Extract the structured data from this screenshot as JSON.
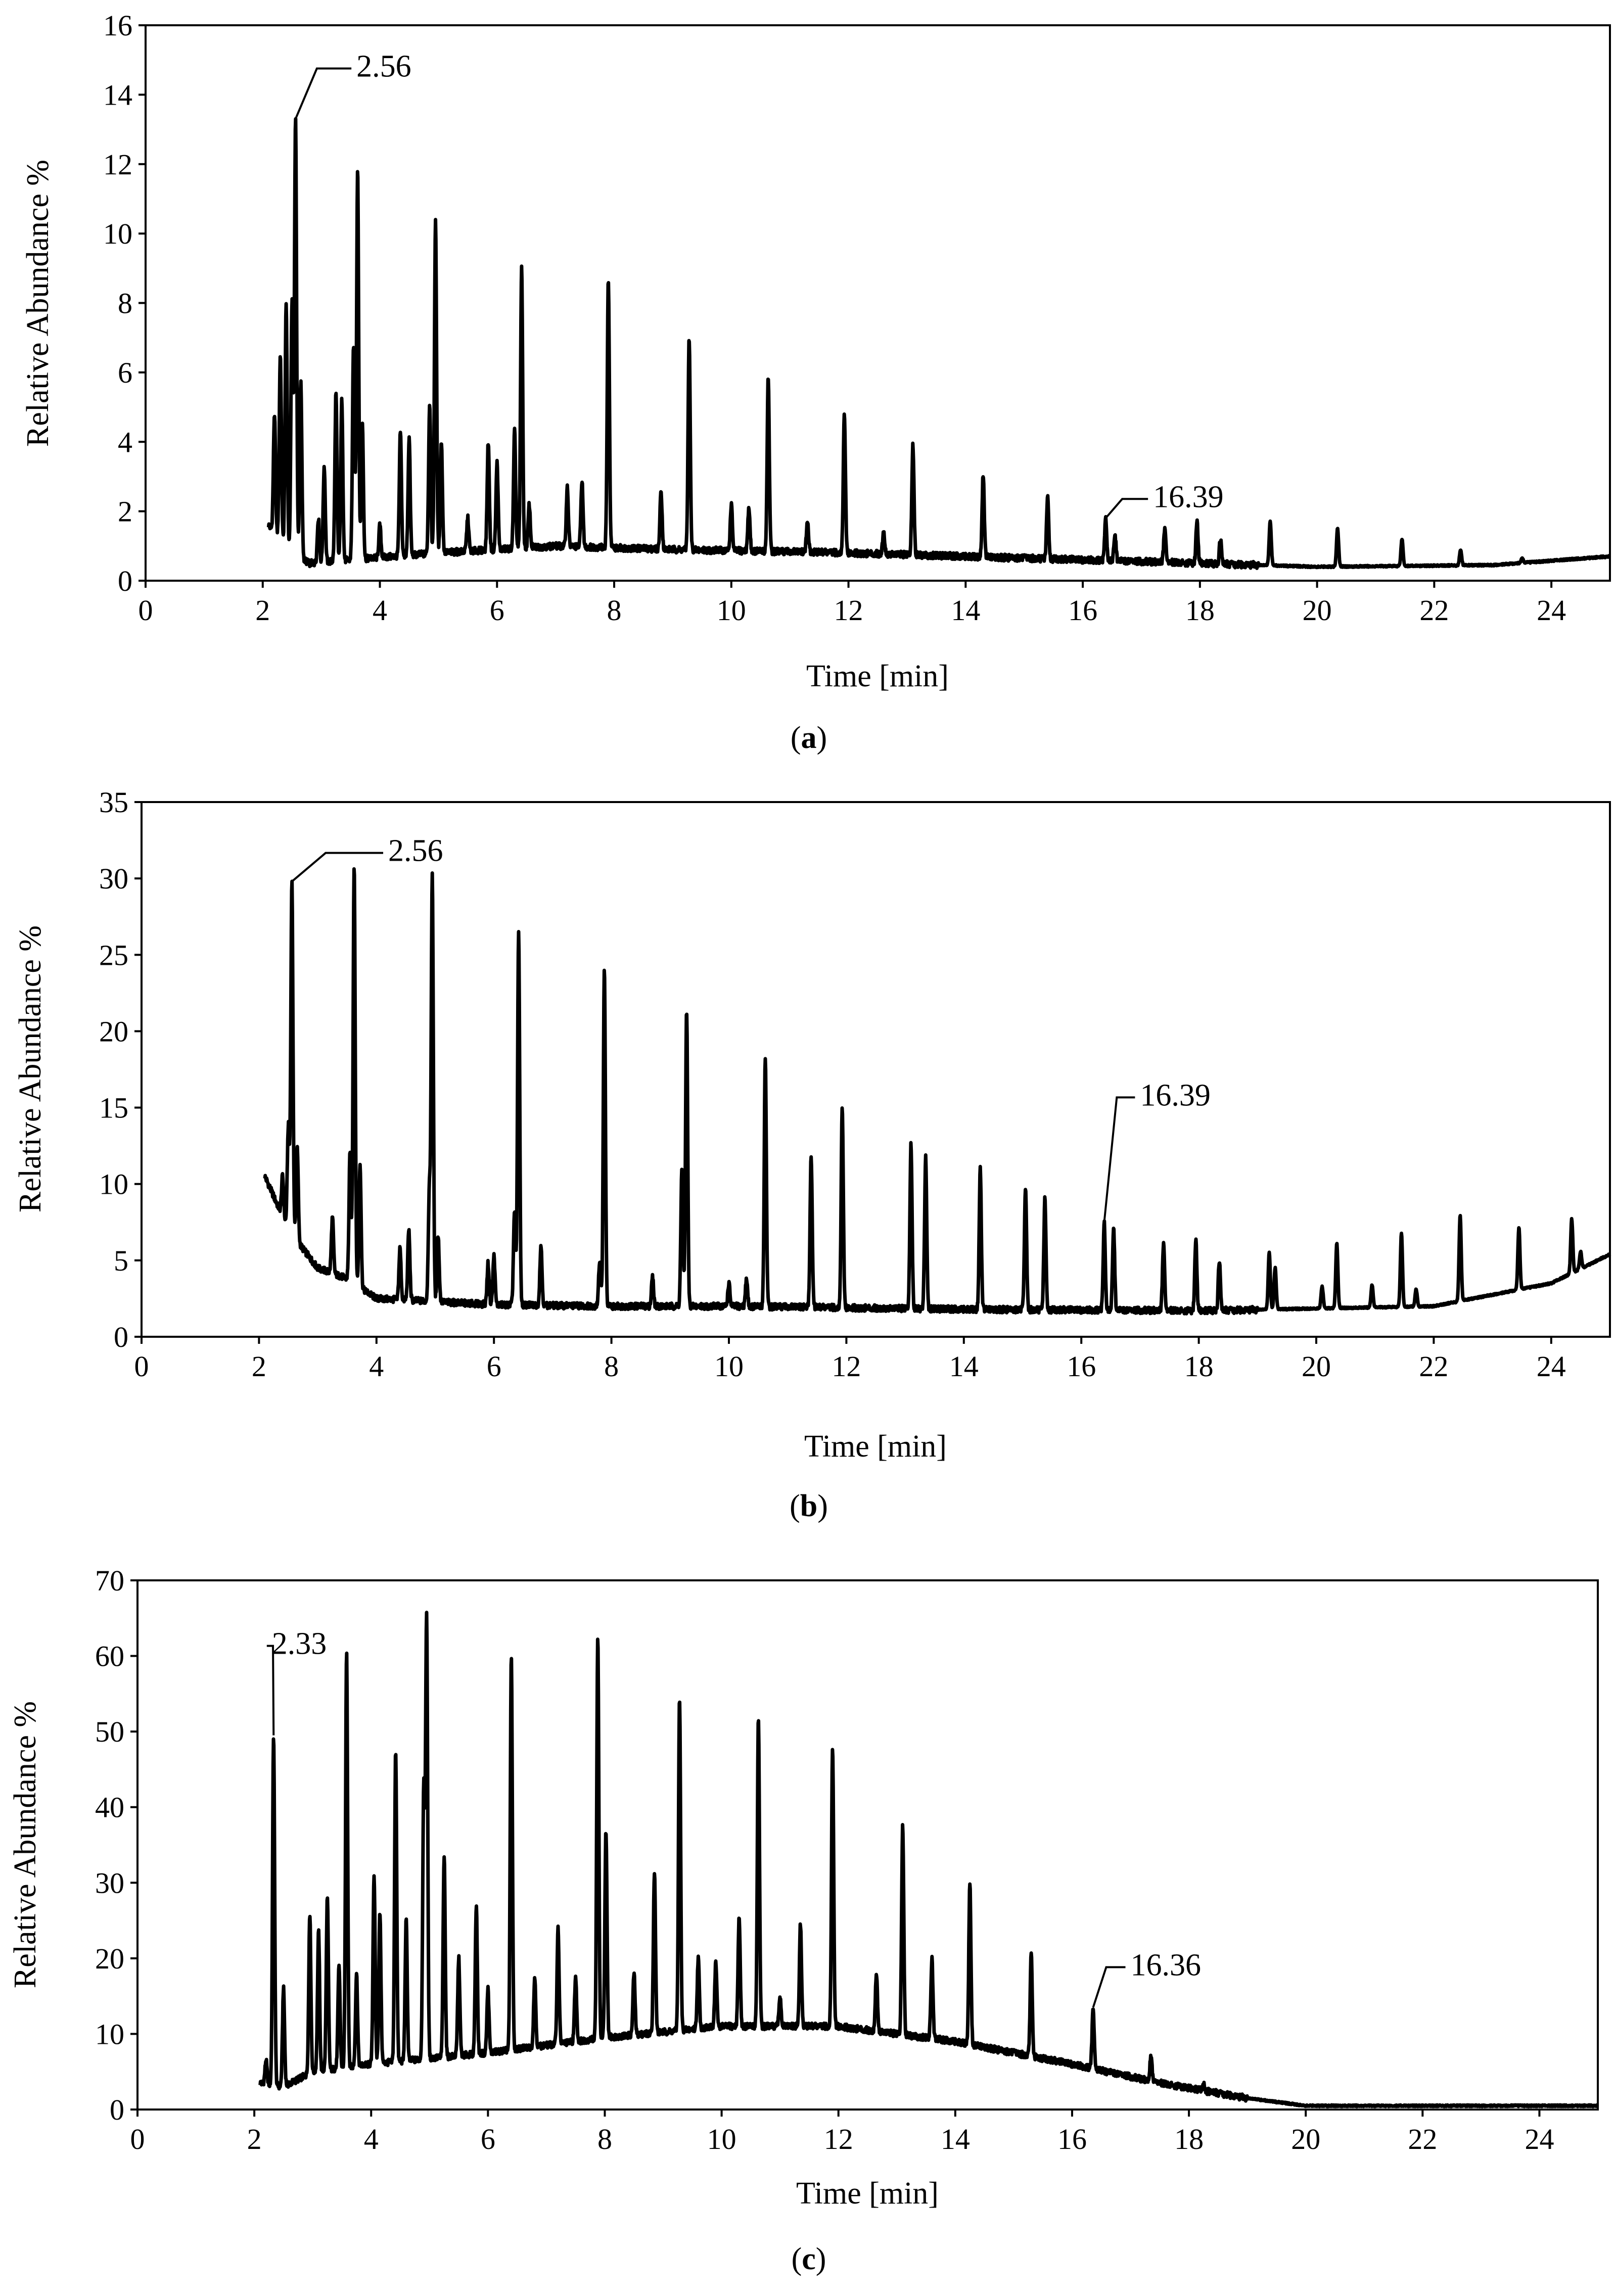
{
  "chart_data": [
    {
      "type": "line",
      "caption_open": "(",
      "caption_letter": "a",
      "caption_close": ")",
      "xlabel": "Time [min]",
      "ylabel": "Relative Abundance %",
      "xlim": [
        0,
        25
      ],
      "ylim": [
        0,
        16
      ],
      "xticks": [
        0,
        2,
        4,
        6,
        8,
        10,
        12,
        14,
        16,
        18,
        20,
        22,
        24
      ],
      "yticks": [
        0,
        2,
        4,
        6,
        8,
        10,
        12,
        14,
        16
      ],
      "start_time": 2.1,
      "baseline": [
        [
          2.1,
          1.6
        ],
        [
          2.4,
          0.9
        ],
        [
          2.8,
          0.5
        ],
        [
          3.5,
          0.6
        ],
        [
          5,
          0.8
        ],
        [
          7,
          1.0
        ],
        [
          9,
          0.9
        ],
        [
          12,
          0.8
        ],
        [
          16,
          0.6
        ],
        [
          20,
          0.4
        ],
        [
          23,
          0.45
        ],
        [
          25,
          0.7
        ]
      ],
      "peaks": [
        [
          2.2,
          4.8
        ],
        [
          2.3,
          6.5
        ],
        [
          2.4,
          7.9
        ],
        [
          2.5,
          8.0
        ],
        [
          2.56,
          13.3
        ],
        [
          2.65,
          5.7
        ],
        [
          2.95,
          1.8
        ],
        [
          3.05,
          3.3
        ],
        [
          3.25,
          5.4
        ],
        [
          3.35,
          5.2
        ],
        [
          3.55,
          6.7
        ],
        [
          3.62,
          11.9
        ],
        [
          3.7,
          4.6
        ],
        [
          4.0,
          1.6
        ],
        [
          4.35,
          4.3
        ],
        [
          4.5,
          4.1
        ],
        [
          4.85,
          5.1
        ],
        [
          4.95,
          10.4
        ],
        [
          5.05,
          4.0
        ],
        [
          5.5,
          1.8
        ],
        [
          5.85,
          4.0
        ],
        [
          6.0,
          3.4
        ],
        [
          6.3,
          4.3
        ],
        [
          6.42,
          9.1
        ],
        [
          6.55,
          2.2
        ],
        [
          7.2,
          2.7
        ],
        [
          7.45,
          2.9
        ],
        [
          7.9,
          8.7
        ],
        [
          8.8,
          2.6
        ],
        [
          9.28,
          7.0
        ],
        [
          10.0,
          2.2
        ],
        [
          10.3,
          2.1
        ],
        [
          10.63,
          5.9
        ],
        [
          11.3,
          1.7
        ],
        [
          11.93,
          4.8
        ],
        [
          12.6,
          1.4
        ],
        [
          13.1,
          3.9
        ],
        [
          14.3,
          3.1
        ],
        [
          15.4,
          2.4
        ],
        [
          16.39,
          1.8
        ],
        [
          16.55,
          1.3
        ],
        [
          17.4,
          1.5
        ],
        [
          17.95,
          1.7
        ],
        [
          18.35,
          1.2
        ],
        [
          19.2,
          1.7
        ],
        [
          20.35,
          1.5
        ],
        [
          21.45,
          1.2
        ],
        [
          22.45,
          0.9
        ],
        [
          23.5,
          0.65
        ]
      ],
      "annotations": [
        {
          "label": "2.56",
          "x": 2.56,
          "y": 13.3,
          "tx": 3.6,
          "ty": 14.9
        },
        {
          "label": "16.39",
          "x": 16.39,
          "y": 1.8,
          "tx": 17.2,
          "ty": 2.5
        }
      ]
    },
    {
      "type": "line",
      "caption_open": "(",
      "caption_letter": "b",
      "caption_close": ")",
      "xlabel": "Time [min]",
      "ylabel": "Relative Abundance %",
      "xlim": [
        0,
        25
      ],
      "ylim": [
        0,
        35
      ],
      "xticks": [
        0,
        2,
        4,
        6,
        8,
        10,
        12,
        14,
        16,
        18,
        20,
        22,
        24
      ],
      "yticks": [
        0,
        5,
        10,
        15,
        20,
        25,
        30,
        35
      ],
      "start_time": 2.1,
      "baseline": [
        [
          2.1,
          10.5
        ],
        [
          2.5,
          7.0
        ],
        [
          3.0,
          4.5
        ],
        [
          3.5,
          3.8
        ],
        [
          4.0,
          2.5
        ],
        [
          6,
          2.1
        ],
        [
          8,
          2.0
        ],
        [
          10,
          2.0
        ],
        [
          14,
          1.8
        ],
        [
          18,
          1.7
        ],
        [
          22,
          2.0
        ],
        [
          24,
          3.5
        ],
        [
          25,
          5.4
        ]
      ],
      "peaks": [
        [
          2.4,
          10.5
        ],
        [
          2.5,
          13.8
        ],
        [
          2.56,
          29.8
        ],
        [
          2.65,
          12.3
        ],
        [
          3.25,
          7.8
        ],
        [
          3.55,
          12.0
        ],
        [
          3.62,
          30.9
        ],
        [
          3.72,
          11.3
        ],
        [
          4.4,
          5.8
        ],
        [
          4.55,
          7.0
        ],
        [
          4.9,
          9.4
        ],
        [
          4.95,
          30.2
        ],
        [
          5.05,
          6.6
        ],
        [
          5.9,
          4.8
        ],
        [
          6.0,
          5.3
        ],
        [
          6.35,
          8.1
        ],
        [
          6.42,
          26.6
        ],
        [
          6.8,
          6.0
        ],
        [
          7.8,
          5.0
        ],
        [
          7.88,
          24.1
        ],
        [
          8.7,
          3.9
        ],
        [
          9.2,
          11.0
        ],
        [
          9.28,
          21.4
        ],
        [
          10.0,
          3.5
        ],
        [
          10.3,
          3.8
        ],
        [
          10.62,
          18.3
        ],
        [
          11.4,
          11.9
        ],
        [
          11.93,
          15.0
        ],
        [
          13.1,
          12.6
        ],
        [
          13.35,
          11.8
        ],
        [
          14.28,
          11.0
        ],
        [
          15.05,
          9.8
        ],
        [
          15.38,
          9.0
        ],
        [
          16.39,
          7.5
        ],
        [
          16.55,
          7.1
        ],
        [
          17.4,
          6.1
        ],
        [
          17.95,
          6.3
        ],
        [
          18.35,
          5.0
        ],
        [
          19.2,
          5.5
        ],
        [
          19.3,
          4.5
        ],
        [
          20.1,
          3.3
        ],
        [
          20.35,
          6.1
        ],
        [
          20.95,
          3.4
        ],
        [
          21.45,
          6.8
        ],
        [
          21.7,
          3.1
        ],
        [
          22.45,
          8.0
        ],
        [
          23.45,
          7.2
        ],
        [
          24.35,
          7.7
        ],
        [
          24.5,
          5.6
        ]
      ],
      "annotations": [
        {
          "label": "2.56",
          "x": 2.56,
          "y": 29.8,
          "tx": 4.2,
          "ty": 32.0
        },
        {
          "label": "16.39",
          "x": 16.39,
          "y": 7.5,
          "tx": 17.0,
          "ty": 16.0
        }
      ]
    },
    {
      "type": "line",
      "caption_open": "(",
      "caption_letter": "c",
      "caption_close": ")",
      "xlabel": "Time [min]",
      "ylabel": "Relative Abundance %",
      "xlim": [
        0,
        25
      ],
      "ylim": [
        0,
        70
      ],
      "xticks": [
        0,
        2,
        4,
        6,
        8,
        10,
        12,
        14,
        16,
        18,
        20,
        22,
        24
      ],
      "yticks": [
        0,
        10,
        20,
        30,
        40,
        50,
        60,
        70
      ],
      "start_time": 2.1,
      "baseline": [
        [
          2.1,
          3.5
        ],
        [
          2.5,
          3.0
        ],
        [
          3.0,
          5.0
        ],
        [
          4.0,
          6.0
        ],
        [
          6.0,
          7.5
        ],
        [
          8.0,
          9.5
        ],
        [
          10.0,
          11.0
        ],
        [
          12.0,
          11.0
        ],
        [
          14.0,
          9.0
        ],
        [
          16.0,
          6.0
        ],
        [
          17.5,
          3.5
        ],
        [
          19.0,
          1.5
        ],
        [
          20.0,
          0.5
        ],
        [
          25.0,
          0.5
        ]
      ],
      "peaks": [
        [
          2.2,
          6.5
        ],
        [
          2.33,
          49.5
        ],
        [
          2.5,
          16.0
        ],
        [
          2.95,
          26.0
        ],
        [
          3.1,
          23.5
        ],
        [
          3.25,
          28.0
        ],
        [
          3.45,
          19.0
        ],
        [
          3.58,
          60.5
        ],
        [
          3.75,
          18.0
        ],
        [
          4.05,
          31.0
        ],
        [
          4.15,
          26.0
        ],
        [
          4.42,
          47.5
        ],
        [
          4.6,
          25.0
        ],
        [
          4.9,
          42.0
        ],
        [
          4.95,
          65.0
        ],
        [
          5.25,
          33.5
        ],
        [
          5.5,
          20.0
        ],
        [
          5.8,
          27.0
        ],
        [
          6.0,
          16.0
        ],
        [
          6.4,
          60.0
        ],
        [
          6.8,
          17.5
        ],
        [
          7.2,
          24.0
        ],
        [
          7.5,
          17.5
        ],
        [
          7.88,
          62.5
        ],
        [
          8.02,
          37.0
        ],
        [
          8.5,
          18.0
        ],
        [
          8.85,
          31.5
        ],
        [
          9.28,
          54.5
        ],
        [
          9.6,
          20.0
        ],
        [
          9.9,
          19.5
        ],
        [
          10.3,
          25.5
        ],
        [
          10.63,
          52.0
        ],
        [
          11.0,
          15.0
        ],
        [
          11.35,
          24.5
        ],
        [
          11.9,
          48.0
        ],
        [
          12.65,
          18.0
        ],
        [
          13.1,
          37.5
        ],
        [
          13.6,
          20.0
        ],
        [
          14.25,
          30.0
        ],
        [
          15.3,
          20.5
        ],
        [
          16.36,
          13.5
        ],
        [
          17.35,
          7.0
        ],
        [
          18.25,
          3.3
        ]
      ],
      "annotations": [
        {
          "label": "2.33",
          "x": 2.33,
          "y": 49.5,
          "tx": 2.3,
          "ty": 62.0
        },
        {
          "label": "16.36",
          "x": 16.36,
          "y": 13.5,
          "tx": 17.0,
          "ty": 19.5
        }
      ]
    }
  ]
}
